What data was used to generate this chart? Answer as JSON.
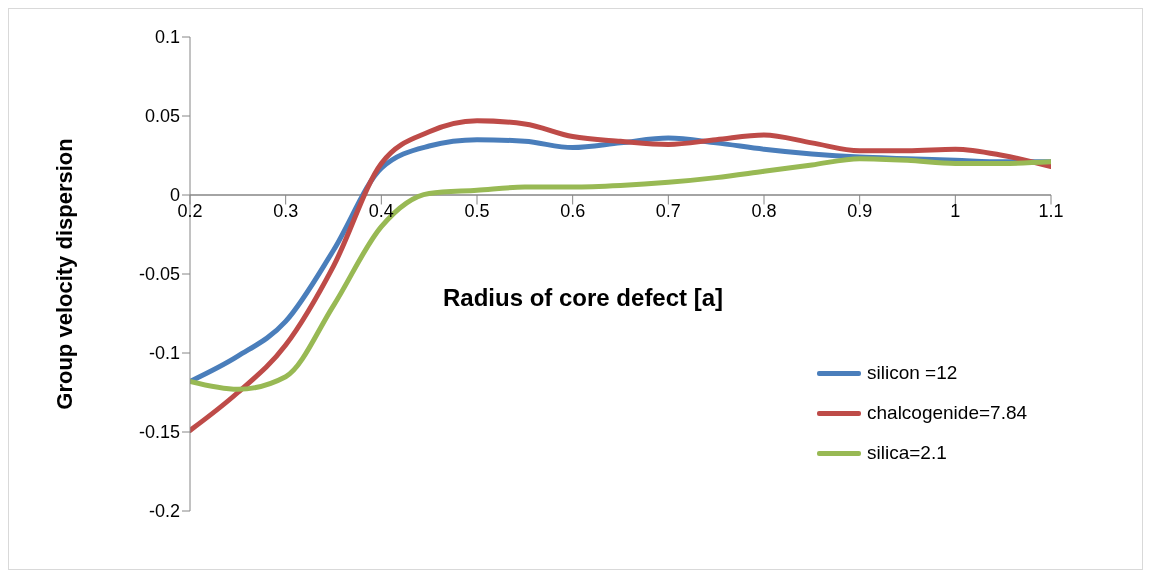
{
  "chart_data": {
    "type": "line",
    "xlabel": "Radius of core defect [a]",
    "ylabel": "Group velocity dispersion",
    "x": [
      0.2,
      0.25,
      0.3,
      0.35,
      0.4,
      0.45,
      0.5,
      0.55,
      0.6,
      0.65,
      0.7,
      0.75,
      0.8,
      0.85,
      0.9,
      0.95,
      1.0,
      1.05,
      1.1
    ],
    "series": [
      {
        "name": "silicon =12",
        "color": "#4a7ebb",
        "values": [
          -0.118,
          -0.102,
          -0.08,
          -0.035,
          0.017,
          0.031,
          0.035,
          0.034,
          0.03,
          0.033,
          0.036,
          0.033,
          0.029,
          0.026,
          0.024,
          0.023,
          0.022,
          0.021,
          0.021
        ]
      },
      {
        "name": "chalcogenide=7.84",
        "color": "#be4b48",
        "values": [
          -0.149,
          -0.125,
          -0.095,
          -0.045,
          0.02,
          0.04,
          0.047,
          0.045,
          0.037,
          0.034,
          0.032,
          0.035,
          0.038,
          0.033,
          0.028,
          0.028,
          0.029,
          0.025,
          0.018
        ]
      },
      {
        "name": "silica=2.1",
        "color": "#98b954",
        "values": [
          -0.118,
          -0.123,
          -0.115,
          -0.07,
          -0.02,
          0.001,
          0.003,
          0.005,
          0.005,
          0.006,
          0.008,
          0.011,
          0.015,
          0.019,
          0.023,
          0.022,
          0.02,
          0.02,
          0.021
        ]
      }
    ],
    "xlim": [
      0.2,
      1.1
    ],
    "xticks": [
      0.2,
      0.3,
      0.4,
      0.5,
      0.6,
      0.7,
      0.8,
      0.9,
      1,
      1.1
    ],
    "ylim": [
      -0.2,
      0.1
    ],
    "yticks": [
      -0.2,
      -0.15,
      -0.1,
      -0.05,
      0,
      0.05,
      0.1
    ],
    "grid": false,
    "legend": "right",
    "marker": "none",
    "line_style": "solid"
  }
}
